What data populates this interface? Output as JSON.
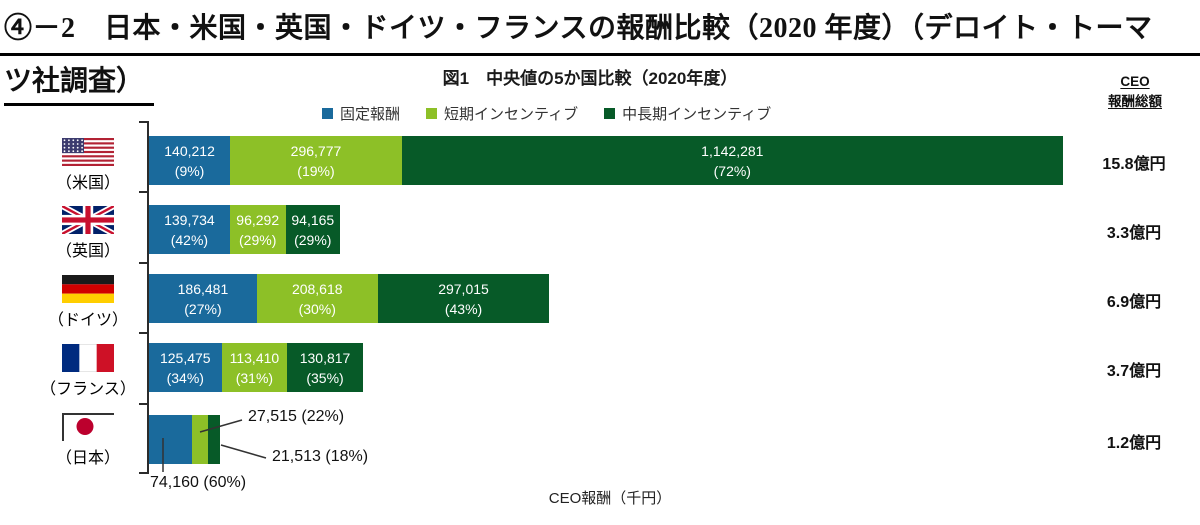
{
  "page": {
    "title_line1": "④－2　日本・米国・英国・ドイツ・フランスの報酬比較（2020 年度）（デロイト・トーマ",
    "title_line2": "ツ社調査）"
  },
  "figure": {
    "title": "図1　中央値の5か国比較（2020年度）",
    "xlabel": "CEO報酬（千円）",
    "totals_header_line1": "CEO",
    "totals_header_line2": "報酬総額"
  },
  "legend": [
    {
      "label": "固定報酬"
    },
    {
      "label": "短期インセンティブ"
    },
    {
      "label": "中長期インセンティブ"
    }
  ],
  "chart_data": {
    "type": "bar",
    "stacked": true,
    "orientation": "horizontal",
    "title": "図1　中央値の5か国比較（2020年度）",
    "xlabel": "CEO報酬（千円）",
    "unit": "千円",
    "xlim": [
      0,
      1590000
    ],
    "grid": false,
    "legend_position": "top",
    "categories": [
      "（米国）",
      "（英国）",
      "（ドイツ）",
      "（フランス）",
      "（日本）"
    ],
    "series": [
      {
        "name": "固定報酬",
        "color": "#1A6A9C",
        "values": [
          140212,
          139734,
          186481,
          125475,
          74160
        ],
        "percent": [
          9,
          42,
          27,
          34,
          60
        ]
      },
      {
        "name": "短期インセンティブ",
        "color": "#8DC027",
        "values": [
          296777,
          96292,
          208618,
          113410,
          27515
        ],
        "percent": [
          19,
          29,
          30,
          31,
          22
        ]
      },
      {
        "name": "中長期インセンティブ",
        "color": "#075A28",
        "values": [
          1142281,
          94165,
          297015,
          130817,
          21513
        ],
        "percent": [
          72,
          29,
          43,
          35,
          18
        ]
      }
    ],
    "totals_header": "CEO報酬総額",
    "totals": [
      "15.8億円",
      "3.3億円",
      "6.9億円",
      "3.7億円",
      "1.2億円"
    ]
  },
  "rows": [
    {
      "country": "（米国）",
      "total": "15.8億円",
      "segments": [
        {
          "value": "140,212",
          "pct": "(9%)"
        },
        {
          "value": "296,777",
          "pct": "(19%)"
        },
        {
          "value": "1,142,281",
          "pct": "(72%)"
        }
      ]
    },
    {
      "country": "（英国）",
      "total": "3.3億円",
      "segments": [
        {
          "value": "139,734",
          "pct": "(42%)"
        },
        {
          "value": "96,292",
          "pct": "(29%)"
        },
        {
          "value": "94,165",
          "pct": "(29%)"
        }
      ]
    },
    {
      "country": "（ドイツ）",
      "total": "6.9億円",
      "segments": [
        {
          "value": "186,481",
          "pct": "(27%)"
        },
        {
          "value": "208,618",
          "pct": "(30%)"
        },
        {
          "value": "297,015",
          "pct": "(43%)"
        }
      ]
    },
    {
      "country": "（フランス）",
      "total": "3.7億円",
      "segments": [
        {
          "value": "125,475",
          "pct": "(34%)"
        },
        {
          "value": "113,410",
          "pct": "(31%)"
        },
        {
          "value": "130,817",
          "pct": "(35%)"
        }
      ]
    },
    {
      "country": "（日本）",
      "total": "1.2億円",
      "segments": [
        {
          "value": "74,160",
          "pct": "(60%)"
        },
        {
          "value": "27,515",
          "pct": "(22%)"
        },
        {
          "value": "21,513",
          "pct": "(18%)"
        }
      ],
      "callouts": [
        {
          "label": "27,515 (22%)"
        },
        {
          "label": "21,513 (18%)"
        },
        {
          "label": "74,160 (60%)"
        }
      ]
    }
  ]
}
